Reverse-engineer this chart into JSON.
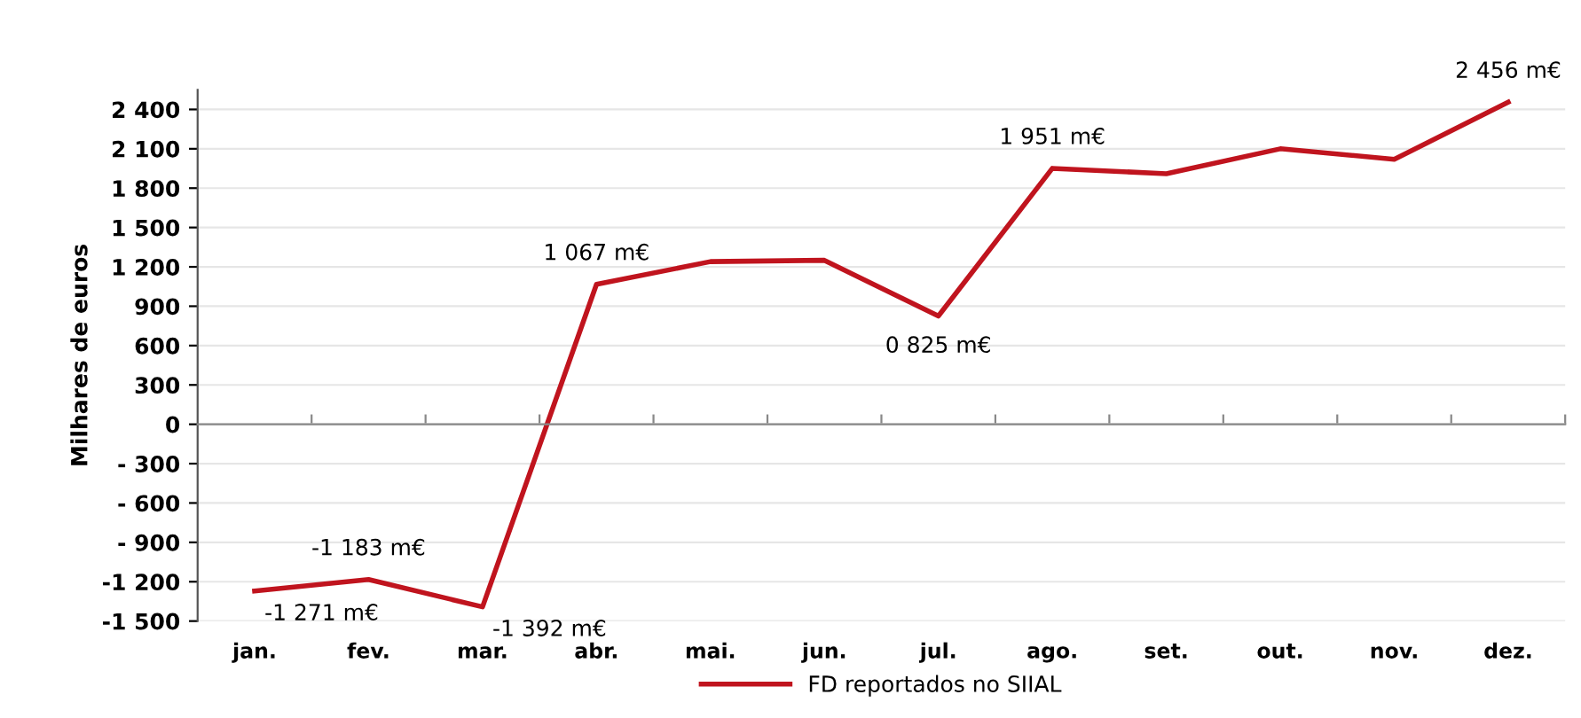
{
  "chart_data": {
    "type": "line",
    "ylabel": "Milhares de euros",
    "categories": [
      "jan.",
      "fev.",
      "mar.",
      "abr.",
      "mai.",
      "jun.",
      "jul.",
      "ago.",
      "set.",
      "out.",
      "nov.",
      "dez."
    ],
    "series": [
      {
        "name": "FD reportados no SIIAL",
        "color": "#c0141e",
        "values": [
          -1271,
          -1183,
          -1392,
          1067,
          1240,
          1250,
          825,
          1951,
          1910,
          2100,
          2020,
          2456
        ],
        "value_labels": [
          "-1 271 m€",
          "-1 183 m€",
          "-1 392 m€",
          "1 067 m€",
          null,
          null,
          "0 825 m€",
          "1 951 m€",
          null,
          null,
          null,
          "2 456 m€"
        ]
      }
    ],
    "ylim": [
      -1500,
      2550
    ],
    "yticks": [
      {
        "value": -1500,
        "label": "-1 500"
      },
      {
        "value": -1200,
        "label": "-1 200"
      },
      {
        "value": -900,
        "label": "- 900"
      },
      {
        "value": -600,
        "label": "- 600"
      },
      {
        "value": -300,
        "label": "- 300"
      },
      0,
      300,
      600,
      900,
      {
        "value": 1200,
        "label": "1 200"
      },
      {
        "value": 1500,
        "label": "1 500"
      },
      {
        "value": 1800,
        "label": "1 800"
      },
      {
        "value": 2100,
        "label": "2 100"
      },
      {
        "value": 2400,
        "label": "2 400"
      }
    ],
    "grid": "y",
    "legend": "bottom",
    "marker": "none",
    "line_style": "solid"
  }
}
